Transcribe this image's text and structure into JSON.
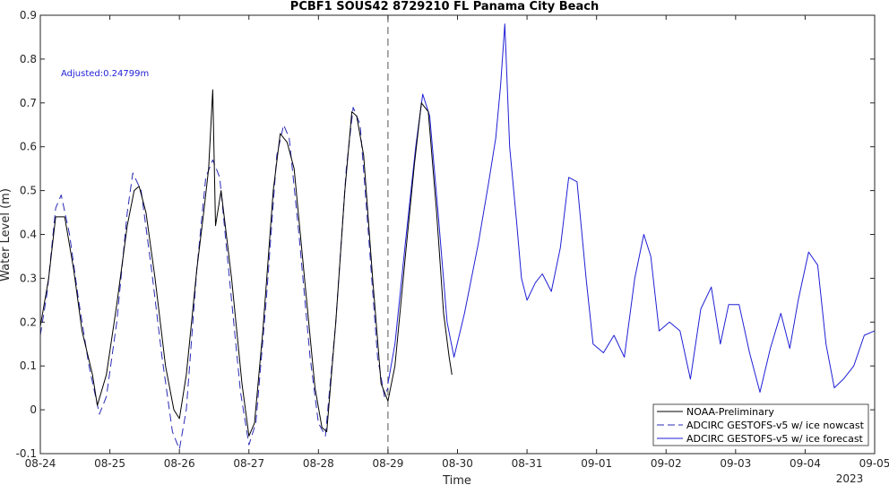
{
  "chart_data": {
    "type": "line",
    "title": "PCBF1 SOUS42 8729210 FL Panama City Beach",
    "xlabel": "Time",
    "ylabel": "Water Level (m)",
    "x_tick_labels": [
      "08-24",
      "08-25",
      "08-26",
      "08-27",
      "08-28",
      "08-29",
      "08-30",
      "08-31",
      "09-01",
      "09-02",
      "09-03",
      "09-04",
      "09-05"
    ],
    "x_year_label": "2023",
    "xlim": [
      0,
      12
    ],
    "ylim": [
      -0.1,
      0.9
    ],
    "y_ticks": [
      -0.1,
      0,
      0.1,
      0.2,
      0.3,
      0.4,
      0.5,
      0.6,
      0.7,
      0.8,
      0.9
    ],
    "y_tick_labels": [
      "-0.1",
      "0",
      "0.1",
      "0.2",
      "0.3",
      "0.4",
      "0.5",
      "0.6",
      "0.7",
      "0.8",
      "0.9"
    ],
    "annotation": "Adjusted:0.24799m",
    "nowcast_forecast_divider_x": 5.0,
    "legend_position": "bottom-right",
    "grid": false,
    "series": [
      {
        "name": "NOAA-Preliminary",
        "color": "#000000",
        "style": "solid",
        "points": [
          [
            0.0,
            0.19
          ],
          [
            0.12,
            0.3
          ],
          [
            0.22,
            0.44
          ],
          [
            0.35,
            0.44
          ],
          [
            0.48,
            0.32
          ],
          [
            0.6,
            0.18
          ],
          [
            0.75,
            0.08
          ],
          [
            0.82,
            0.01
          ],
          [
            0.95,
            0.08
          ],
          [
            1.1,
            0.24
          ],
          [
            1.25,
            0.42
          ],
          [
            1.35,
            0.5
          ],
          [
            1.42,
            0.51
          ],
          [
            1.52,
            0.45
          ],
          [
            1.65,
            0.3
          ],
          [
            1.8,
            0.1
          ],
          [
            1.92,
            0.0
          ],
          [
            2.0,
            -0.02
          ],
          [
            2.1,
            0.08
          ],
          [
            2.25,
            0.32
          ],
          [
            2.35,
            0.45
          ],
          [
            2.42,
            0.55
          ],
          [
            2.48,
            0.73
          ],
          [
            2.52,
            0.42
          ],
          [
            2.6,
            0.5
          ],
          [
            2.75,
            0.3
          ],
          [
            2.9,
            0.06
          ],
          [
            3.0,
            -0.06
          ],
          [
            3.08,
            -0.03
          ],
          [
            3.2,
            0.18
          ],
          [
            3.35,
            0.5
          ],
          [
            3.45,
            0.63
          ],
          [
            3.55,
            0.61
          ],
          [
            3.65,
            0.55
          ],
          [
            3.8,
            0.3
          ],
          [
            3.95,
            0.05
          ],
          [
            4.05,
            -0.04
          ],
          [
            4.12,
            -0.05
          ],
          [
            4.25,
            0.2
          ],
          [
            4.38,
            0.5
          ],
          [
            4.48,
            0.68
          ],
          [
            4.55,
            0.67
          ],
          [
            4.65,
            0.58
          ],
          [
            4.78,
            0.3
          ],
          [
            4.9,
            0.06
          ],
          [
            5.0,
            0.02
          ],
          [
            5.1,
            0.1
          ],
          [
            5.25,
            0.35
          ],
          [
            5.38,
            0.56
          ],
          [
            5.48,
            0.7
          ],
          [
            5.58,
            0.68
          ],
          [
            5.7,
            0.45
          ],
          [
            5.8,
            0.22
          ],
          [
            5.88,
            0.12
          ],
          [
            5.92,
            0.08
          ]
        ]
      },
      {
        "name": "ADCIRC GESTOFS-v5 w/ ice nowcast",
        "color": "#2a2ab5",
        "style": "dashed",
        "points": [
          [
            0.0,
            0.17
          ],
          [
            0.1,
            0.27
          ],
          [
            0.22,
            0.46
          ],
          [
            0.3,
            0.49
          ],
          [
            0.42,
            0.4
          ],
          [
            0.55,
            0.25
          ],
          [
            0.7,
            0.1
          ],
          [
            0.85,
            -0.01
          ],
          [
            0.95,
            0.03
          ],
          [
            1.1,
            0.2
          ],
          [
            1.25,
            0.45
          ],
          [
            1.33,
            0.54
          ],
          [
            1.45,
            0.5
          ],
          [
            1.6,
            0.32
          ],
          [
            1.75,
            0.12
          ],
          [
            1.9,
            -0.05
          ],
          [
            2.0,
            -0.09
          ],
          [
            2.1,
            0.0
          ],
          [
            2.25,
            0.32
          ],
          [
            2.38,
            0.53
          ],
          [
            2.48,
            0.57
          ],
          [
            2.58,
            0.53
          ],
          [
            2.72,
            0.3
          ],
          [
            2.88,
            0.04
          ],
          [
            3.0,
            -0.08
          ],
          [
            3.1,
            -0.03
          ],
          [
            3.25,
            0.25
          ],
          [
            3.4,
            0.58
          ],
          [
            3.5,
            0.65
          ],
          [
            3.58,
            0.62
          ],
          [
            3.72,
            0.4
          ],
          [
            3.88,
            0.12
          ],
          [
            4.0,
            -0.03
          ],
          [
            4.1,
            -0.06
          ],
          [
            4.25,
            0.2
          ],
          [
            4.4,
            0.55
          ],
          [
            4.5,
            0.69
          ],
          [
            4.6,
            0.65
          ],
          [
            4.72,
            0.4
          ],
          [
            4.85,
            0.12
          ],
          [
            4.95,
            0.03
          ],
          [
            5.0,
            0.05
          ]
        ]
      },
      {
        "name": "ADCIRC GESTOFS-v5 w/ ice forecast",
        "color": "#1f1fd6",
        "style": "solid",
        "points": [
          [
            5.0,
            0.06
          ],
          [
            5.1,
            0.15
          ],
          [
            5.25,
            0.38
          ],
          [
            5.4,
            0.6
          ],
          [
            5.5,
            0.72
          ],
          [
            5.6,
            0.67
          ],
          [
            5.72,
            0.45
          ],
          [
            5.85,
            0.2
          ],
          [
            5.95,
            0.12
          ],
          [
            6.1,
            0.22
          ],
          [
            6.3,
            0.38
          ],
          [
            6.45,
            0.52
          ],
          [
            6.55,
            0.62
          ],
          [
            6.62,
            0.74
          ],
          [
            6.68,
            0.88
          ],
          [
            6.75,
            0.6
          ],
          [
            6.85,
            0.43
          ],
          [
            6.92,
            0.3
          ],
          [
            7.0,
            0.25
          ],
          [
            7.12,
            0.29
          ],
          [
            7.22,
            0.31
          ],
          [
            7.35,
            0.27
          ],
          [
            7.48,
            0.37
          ],
          [
            7.6,
            0.53
          ],
          [
            7.72,
            0.52
          ],
          [
            7.85,
            0.3
          ],
          [
            7.95,
            0.15
          ],
          [
            8.1,
            0.13
          ],
          [
            8.25,
            0.17
          ],
          [
            8.4,
            0.12
          ],
          [
            8.55,
            0.3
          ],
          [
            8.68,
            0.4
          ],
          [
            8.78,
            0.35
          ],
          [
            8.9,
            0.18
          ],
          [
            9.05,
            0.2
          ],
          [
            9.2,
            0.18
          ],
          [
            9.35,
            0.07
          ],
          [
            9.5,
            0.23
          ],
          [
            9.65,
            0.28
          ],
          [
            9.78,
            0.15
          ],
          [
            9.9,
            0.24
          ],
          [
            10.05,
            0.24
          ],
          [
            10.2,
            0.13
          ],
          [
            10.35,
            0.04
          ],
          [
            10.5,
            0.14
          ],
          [
            10.65,
            0.22
          ],
          [
            10.78,
            0.14
          ],
          [
            10.9,
            0.25
          ],
          [
            11.05,
            0.36
          ],
          [
            11.18,
            0.33
          ],
          [
            11.3,
            0.15
          ],
          [
            11.42,
            0.05
          ],
          [
            11.55,
            0.07
          ],
          [
            11.7,
            0.1
          ],
          [
            11.85,
            0.17
          ],
          [
            12.0,
            0.18
          ]
        ]
      }
    ]
  }
}
